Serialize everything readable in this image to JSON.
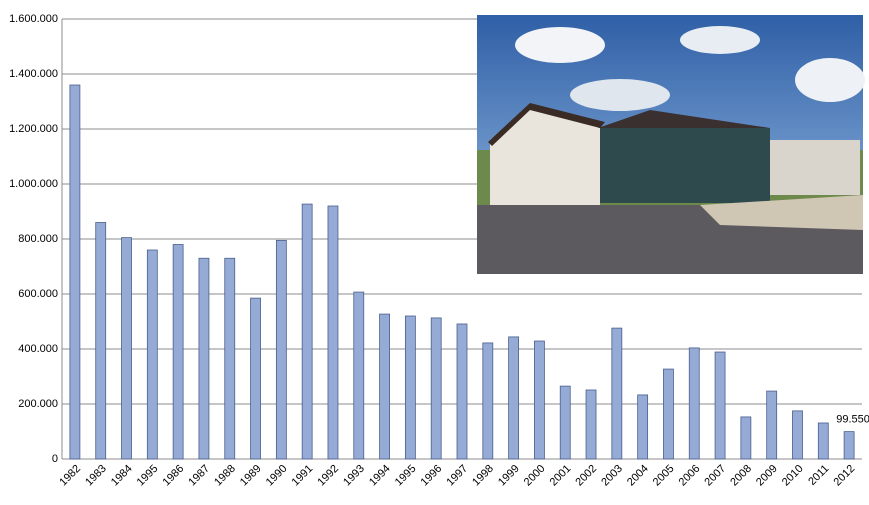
{
  "chart_data": {
    "type": "bar",
    "categories": [
      "1982",
      "1983",
      "1984",
      "1995",
      "1986",
      "1987",
      "1988",
      "1989",
      "1990",
      "1991",
      "1992",
      "1993",
      "1994",
      "1995",
      "1996",
      "1997",
      "1998",
      "1999",
      "2000",
      "2001",
      "2002",
      "2003",
      "2004",
      "2005",
      "2006",
      "2007",
      "2008",
      "2009",
      "2010",
      "2011",
      "2012"
    ],
    "values": [
      1360000,
      860000,
      805000,
      760000,
      780000,
      730000,
      730000,
      585000,
      795000,
      927000,
      920000,
      607000,
      527000,
      520000,
      513000,
      491000,
      422000,
      444000,
      429000,
      265000,
      251000,
      476000,
      233000,
      327000,
      404000,
      389000,
      153000,
      247000,
      175000,
      131000,
      99550
    ],
    "value_labels": [
      null,
      null,
      null,
      null,
      null,
      null,
      null,
      null,
      null,
      null,
      null,
      null,
      null,
      null,
      null,
      null,
      null,
      null,
      null,
      null,
      null,
      null,
      null,
      null,
      null,
      null,
      null,
      null,
      null,
      null,
      "99.550"
    ],
    "color": "#95abd6",
    "ylim": [
      0,
      1600000
    ],
    "yticks": [
      0,
      {
        "value": 200000,
        "label": "200.000"
      },
      {
        "value": 400000,
        "label": "400.000"
      },
      {
        "value": 600000,
        "label": "600.000"
      },
      {
        "value": 800000,
        "label": "800.000"
      },
      {
        "value": 1000000,
        "label": "1.000.000"
      },
      {
        "value": 1200000,
        "label": "1.200.000"
      },
      {
        "value": 1400000,
        "label": "1.400.000"
      },
      {
        "value": 1600000,
        "label": "1.600.000"
      }
    ],
    "grid": true
  }
}
